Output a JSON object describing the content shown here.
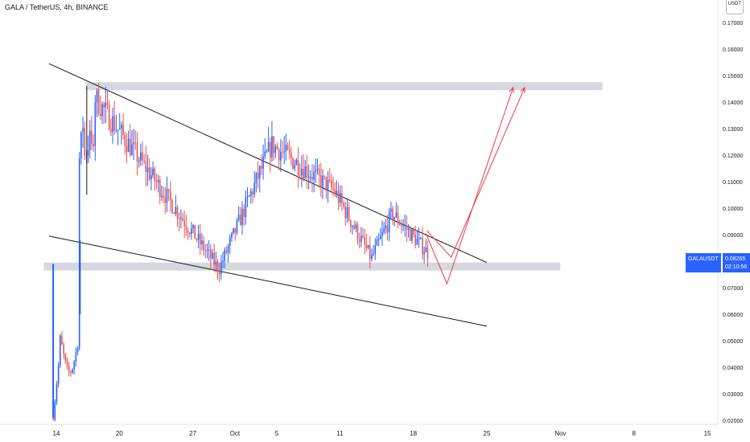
{
  "header": {
    "title": "GALA / TetherUS, 4h, BINANCE",
    "currency": "USDT"
  },
  "price_tag": {
    "symbol": "GALAUSDT",
    "price": "0.08265",
    "countdown": "02:10:56"
  },
  "colors": {
    "bull": "#2962ff",
    "bear": "#ef5350",
    "zone": "#d1d4dc",
    "trendline": "#131722",
    "projection": "#f23645",
    "axis_text": "#131722"
  },
  "chart_data": {
    "type": "candlestick",
    "title": "GALA / TetherUS, 4h, BINANCE",
    "y_axis": {
      "ticks": [
        0.02,
        0.03,
        0.04,
        0.05,
        0.06,
        0.07,
        0.08,
        0.09,
        0.1,
        0.11,
        0.12,
        0.13,
        0.14,
        0.15,
        0.16,
        0.17
      ],
      "tick_labels": [
        "0.02000",
        "0.03000",
        "0.04000",
        "0.05000",
        "0.06000",
        "0.07000",
        "0.08000",
        "0.09000",
        "0.10000",
        "0.11000",
        "0.12000",
        "0.13000",
        "0.14000",
        "0.15000",
        "0.16000",
        "0.17000"
      ],
      "range": [
        0.0185,
        0.1785
      ]
    },
    "x_axis": {
      "range_days": [
        -1,
        47
      ],
      "ticks": [
        {
          "label": "14",
          "day": 0
        },
        {
          "label": "20",
          "day": 6
        },
        {
          "label": "27",
          "day": 13
        },
        {
          "label": "Oct",
          "day": 17
        },
        {
          "label": "5",
          "day": 21
        },
        {
          "label": "11",
          "day": 27
        },
        {
          "label": "18",
          "day": 34
        },
        {
          "label": "25",
          "day": 41
        },
        {
          "label": "Nov",
          "day": 48
        },
        {
          "label": "8",
          "day": 55
        },
        {
          "label": "15",
          "day": 62
        }
      ]
    },
    "key_points": [
      {
        "day": -0.3,
        "price": 0.021,
        "note": "low"
      },
      {
        "day": 2.9,
        "price": 0.146,
        "note": "spike high"
      },
      {
        "day": 15.5,
        "price": 0.077,
        "note": "support touch"
      },
      {
        "day": 20.5,
        "price": 0.124,
        "note": "local high"
      },
      {
        "day": 26.5,
        "price": 0.1065
      },
      {
        "day": 30,
        "price": 0.081
      },
      {
        "day": 32,
        "price": 0.098
      },
      {
        "day": 35.5,
        "price": 0.08265,
        "note": "last"
      }
    ],
    "zones": [
      {
        "name": "resistance",
        "top": 0.1475,
        "bottom": 0.1445,
        "day_start": 2.8,
        "day_end": 52
      },
      {
        "name": "support",
        "top": 0.0795,
        "bottom": 0.0765,
        "day_start": -1.2,
        "day_end": 48
      }
    ],
    "trendlines": [
      {
        "name": "upper",
        "points": [
          [
            -0.7,
            0.1545
          ],
          [
            41,
            0.0795
          ]
        ]
      },
      {
        "name": "lower",
        "points": [
          [
            -0.7,
            0.0895
          ],
          [
            41,
            0.0555
          ]
        ]
      }
    ],
    "projections": [
      {
        "name": "path-outer",
        "points": [
          [
            35.2,
            0.0905
          ],
          [
            37.2,
            0.0715
          ],
          [
            43.5,
            0.1455
          ]
        ]
      },
      {
        "name": "path-inner",
        "points": [
          [
            35.3,
            0.0915
          ],
          [
            37.6,
            0.0815
          ],
          [
            44.6,
            0.1455
          ]
        ]
      }
    ]
  }
}
